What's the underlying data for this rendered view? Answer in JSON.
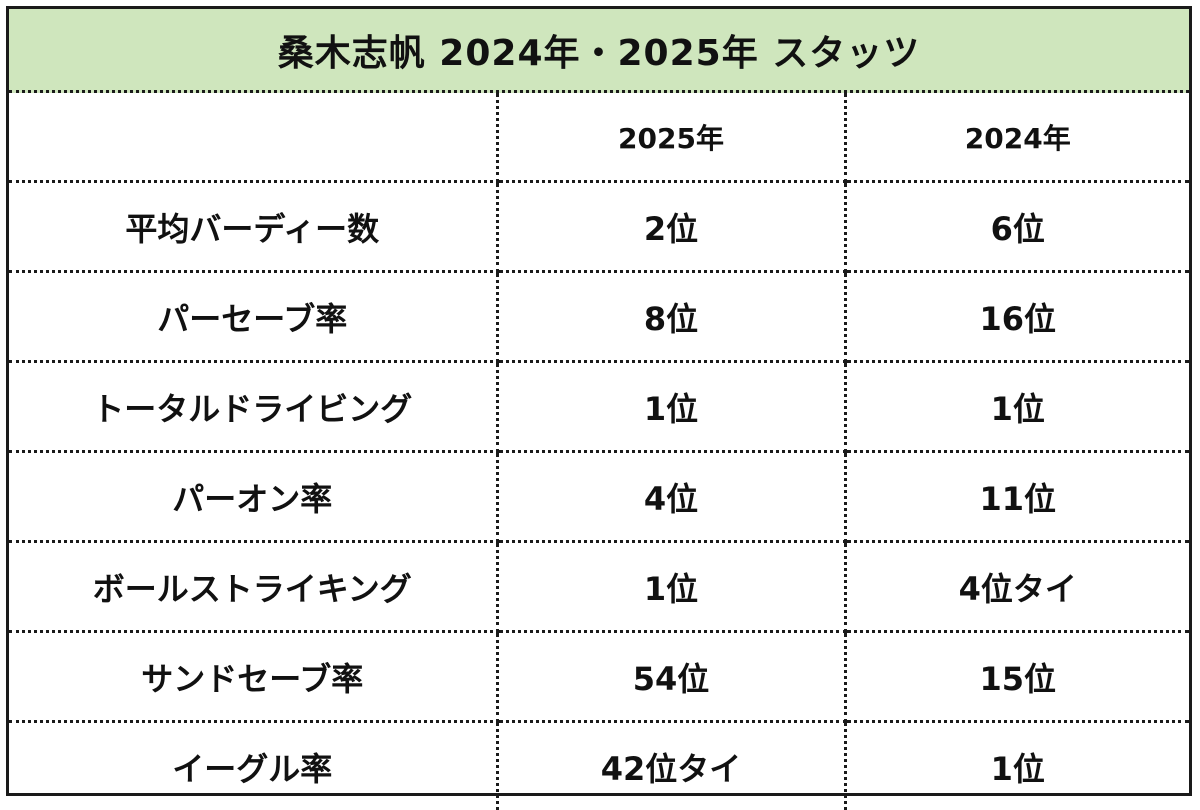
{
  "title": "桑木志帆 2024年・2025年 スタッツ",
  "columns": [
    "",
    "2025年",
    "2024年"
  ],
  "rows": [
    {
      "stat": "平均バーディー数",
      "y2025": "2位",
      "y2024": "6位"
    },
    {
      "stat": "パーセーブ率",
      "y2025": "8位",
      "y2024": "16位"
    },
    {
      "stat": "トータルドライビング",
      "y2025": "1位",
      "y2024": "1位"
    },
    {
      "stat": "パーオン率",
      "y2025": "4位",
      "y2024": "11位"
    },
    {
      "stat": "ボールストライキング",
      "y2025": "1位",
      "y2024": "4位タイ"
    },
    {
      "stat": "サンドセーブ率",
      "y2025": "54位",
      "y2024": "15位"
    },
    {
      "stat": "イーグル率",
      "y2025": "42位タイ",
      "y2024": "1位"
    }
  ],
  "colors": {
    "header_bg": "#cfe6bd",
    "border": "#1a1a1a"
  }
}
